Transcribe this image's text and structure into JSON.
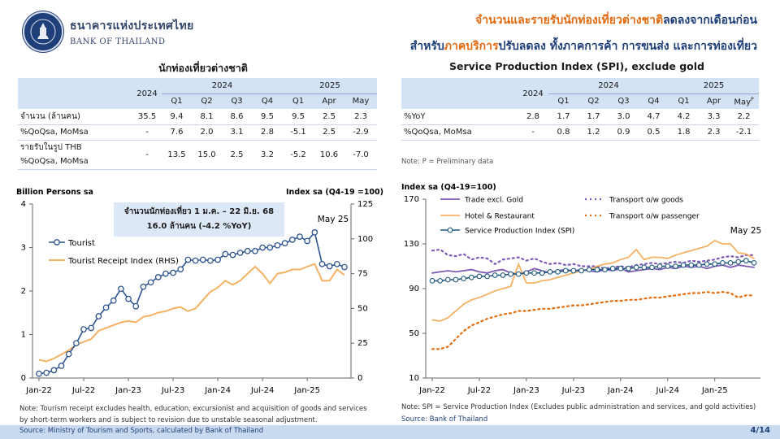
{
  "header": {
    "bank_thai": "ธนาคารแห่งประเทศไทย",
    "bank_en": "BANK OF THAILAND",
    "headline1_a": "จำนวนและรายรับนักท่องเที่ยวต่างชาติ",
    "headline1_b": "ลดลงจากเดือนก่อน",
    "headline2_a": "สำหรับ",
    "headline2_b": "ภาคบริการ",
    "headline2_c": "ปรับลดลง ทั้งภาคการค้า การขนส่ง และการท่องเที่ยว"
  },
  "colors": {
    "navy": "#1f3f79",
    "orange": "#e26a0f",
    "tourist_line": "#2e5491",
    "receipt_line": "#f5b164",
    "trade": "#7d5ab5",
    "hotel": "#f5b164",
    "transport_goods": "#7d5ab5",
    "transport_passenger": "#e46c0a",
    "spi": "#1f5a7d"
  },
  "left_table": {
    "title": "นักท่องเที่ยวต่างชาติ",
    "col_2024": "2024",
    "group_2024": "2024",
    "group_2025": "2025",
    "cols": [
      "Q1",
      "Q2",
      "Q3",
      "Q4",
      "Q1",
      "Apr",
      "May"
    ],
    "rows": [
      {
        "label": "จำนวน (ล้านคน)",
        "label2": "",
        "cells": [
          "35.5",
          "9.4",
          "8.1",
          "8.6",
          "9.5",
          "9.5",
          "2.5",
          "2.3"
        ]
      },
      {
        "label": "%QoQsa, MoMsa",
        "label2": "",
        "cells": [
          "-",
          "7.6",
          "2.0",
          "3.1",
          "2.8",
          "-5.1",
          "2.5",
          "-2.9"
        ]
      },
      {
        "label": "รายรับในรูป THB",
        "label2": "%QoQsa, MoMsa",
        "cells": [
          "-",
          "13.5",
          "15.0",
          "2.5",
          "3.2",
          "-5.2",
          "10.6",
          "-7.0"
        ]
      }
    ]
  },
  "right_table": {
    "title": "Service Production Index (SPI), exclude gold",
    "col_2024": "2024",
    "group_2024": "2024",
    "group_2025": "2025",
    "cols": [
      "Q1",
      "Q2",
      "Q3",
      "Q4",
      "Q1",
      "Apr",
      "May"
    ],
    "may_sup": "P",
    "rows": [
      {
        "label": "%YoY",
        "cells": [
          "2.8",
          "1.7",
          "1.7",
          "3.0",
          "4.7",
          "4.2",
          "3.3",
          "2.2"
        ]
      },
      {
        "label": "%QoQsa, MoMsa",
        "cells": [
          "-",
          "0.8",
          "1.2",
          "0.9",
          "0.5",
          "1.8",
          "2.3",
          "-2.1"
        ]
      }
    ],
    "note": "Note: P = Preliminary data"
  },
  "chart_data": [
    {
      "type": "line",
      "ylabel_left": "Billion Persons sa",
      "ylabel_right": "Index sa (Q4-19 =100)",
      "ylim_left": [
        0,
        4
      ],
      "ylim_right": [
        0,
        125
      ],
      "yticks_left": [
        "0",
        "1",
        "2",
        "3",
        "4"
      ],
      "yticks_right": [
        "0",
        "25",
        "50",
        "75",
        "100",
        "125"
      ],
      "xticks": [
        "Jan-22",
        "Jul-22",
        "Jan-23",
        "Jul-23",
        "Jan-24",
        "Jul-24",
        "Jan-25"
      ],
      "x_start": "Jan-22",
      "x_end": "May-25",
      "callout_line1": "จำนวนนักท่องเที่ยว 1 ม.ค. – 22 มิ.ย. 68",
      "callout_line2": "16.0 ล้านคน (-4.2 %YoY)",
      "last_label": "May 25",
      "series": [
        {
          "name": "Tourist",
          "axis": "left",
          "values": [
            0.1,
            0.12,
            0.18,
            0.28,
            0.55,
            0.8,
            1.12,
            1.15,
            1.42,
            1.62,
            1.78,
            2.05,
            1.82,
            1.65,
            2.1,
            2.2,
            2.32,
            2.4,
            2.42,
            2.5,
            2.72,
            2.7,
            2.72,
            2.7,
            2.72,
            2.85,
            2.83,
            2.88,
            2.92,
            2.92,
            3.0,
            3.0,
            3.05,
            3.1,
            3.18,
            3.25,
            3.15,
            3.35,
            2.62,
            2.57,
            2.62,
            2.55
          ]
        },
        {
          "name": "Tourist Receipt Index (RHS)",
          "axis": "right",
          "values": [
            13,
            12,
            14,
            17,
            20,
            24,
            26,
            28,
            34,
            36,
            38,
            40,
            41,
            40,
            44,
            45,
            47,
            48,
            50,
            51,
            48,
            50,
            56,
            62,
            65,
            70,
            67,
            70,
            75,
            80,
            75,
            68,
            75,
            76,
            78,
            78,
            80,
            82,
            70,
            70,
            78,
            74
          ]
        }
      ]
    },
    {
      "type": "line",
      "ylabel": "Index sa (Q4-19=100)",
      "ylim": [
        10,
        170
      ],
      "yticks": [
        "10",
        "50",
        "90",
        "130",
        "170"
      ],
      "xticks": [
        "Jan-22",
        "Jul-22",
        "Jan-23",
        "Jul-23",
        "Jan-24",
        "Jul-24",
        "Jan-25"
      ],
      "x_start": "Jan-22",
      "x_end": "May-25",
      "last_label": "May 25",
      "series": [
        {
          "name": "Trade excl. Gold",
          "values": [
            104,
            105,
            106,
            105,
            106,
            107,
            105,
            104,
            106,
            107,
            104,
            103,
            105,
            108,
            106,
            104,
            106,
            107,
            106,
            107,
            106,
            105,
            107,
            106,
            108,
            105,
            106,
            107,
            108,
            107,
            109,
            108,
            110,
            109,
            110,
            108,
            110,
            111,
            109,
            111,
            110,
            109
          ]
        },
        {
          "name": "Transport o/w goods",
          "values": [
            124,
            125,
            120,
            119,
            121,
            116,
            118,
            117,
            112,
            116,
            117,
            118,
            115,
            117,
            114,
            112,
            113,
            111,
            112,
            110,
            110,
            110,
            108,
            109,
            110,
            109,
            111,
            112,
            113,
            112,
            113,
            114,
            113,
            115,
            114,
            115,
            116,
            118,
            119,
            118,
            120,
            120
          ]
        },
        {
          "name": "Hotel & Restaurant",
          "values": [
            62,
            61,
            64,
            70,
            76,
            80,
            82,
            85,
            88,
            90,
            92,
            112,
            95,
            95,
            97,
            98,
            100,
            102,
            104,
            106,
            107,
            110,
            112,
            113,
            116,
            118,
            125,
            116,
            118,
            118,
            117,
            120,
            122,
            124,
            126,
            128,
            133,
            130,
            130,
            122,
            121,
            117
          ]
        },
        {
          "name": "Transport o/w passenger",
          "values": [
            36,
            36,
            38,
            45,
            52,
            57,
            60,
            63,
            65,
            67,
            68,
            70,
            70,
            71,
            72,
            72,
            73,
            74,
            75,
            75,
            76,
            77,
            78,
            79,
            79,
            80,
            80,
            81,
            82,
            82,
            83,
            84,
            85,
            86,
            86,
            87,
            86,
            87,
            86,
            82,
            84,
            84
          ]
        },
        {
          "name": "Service Production Index (SPI)",
          "values": [
            97,
            97,
            98,
            98,
            99,
            100,
            101,
            101,
            102,
            102,
            103,
            103,
            104,
            104,
            104,
            105,
            105,
            106,
            106,
            106,
            107,
            107,
            107,
            108,
            108,
            108,
            109,
            109,
            109,
            110,
            110,
            110,
            111,
            111,
            111,
            112,
            112,
            113,
            113,
            114,
            115,
            113
          ]
        }
      ]
    }
  ],
  "notes": {
    "left_note": "Note: Tourism receipt excludes health, education, excursionist and acquisition of goods and services by short-term workers and is subject to revision due to unstable seasonal adjustment.",
    "left_source": "Source: Ministry of Tourism and Sports, calculated by Bank of Thailand",
    "right_note": "Note: SPI = Service Production Index (Excludes public administration and services, and gold activities)",
    "right_source": "Source: Bank of Thailand"
  },
  "page": "4/14"
}
